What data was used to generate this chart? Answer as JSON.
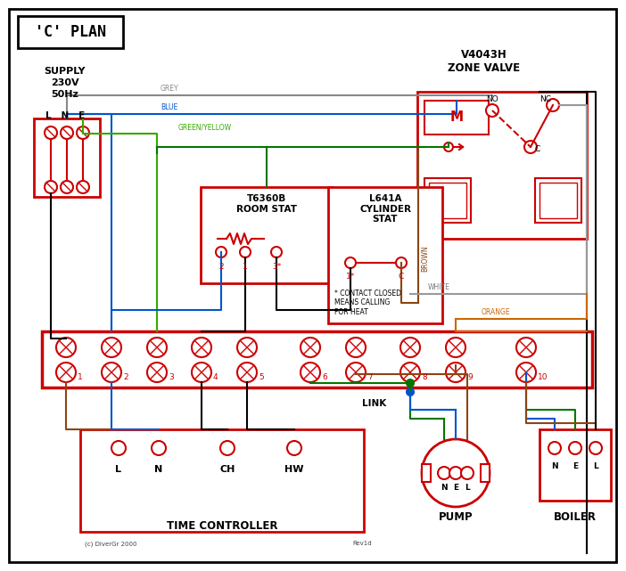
{
  "title": "'C' PLAN",
  "red": "#cc0000",
  "blue": "#0055cc",
  "green": "#007700",
  "grey": "#888888",
  "brown": "#8B4513",
  "orange": "#cc6600",
  "black": "#000000",
  "dark_red": "#cc0000",
  "supply_text": "SUPPLY\n230V\n50Hz",
  "zone_valve_title": "V4043H\nZONE VALVE",
  "room_stat_title": "T6360B\nROOM STAT",
  "cylinder_stat_title": "L641A\nCYLINDER\nSTAT",
  "time_controller_label": "TIME CONTROLLER",
  "pump_label": "PUMP",
  "boiler_label": "BOILER",
  "link_label": "LINK",
  "terminal_numbers": [
    "1",
    "2",
    "3",
    "4",
    "5",
    "6",
    "7",
    "8",
    "9",
    "10"
  ],
  "contact_note": "* CONTACT CLOSED\nMEANS CALLING\nFOR HEAT",
  "copyright": "(c) DiverGr 2000",
  "revision": "Rev1d"
}
